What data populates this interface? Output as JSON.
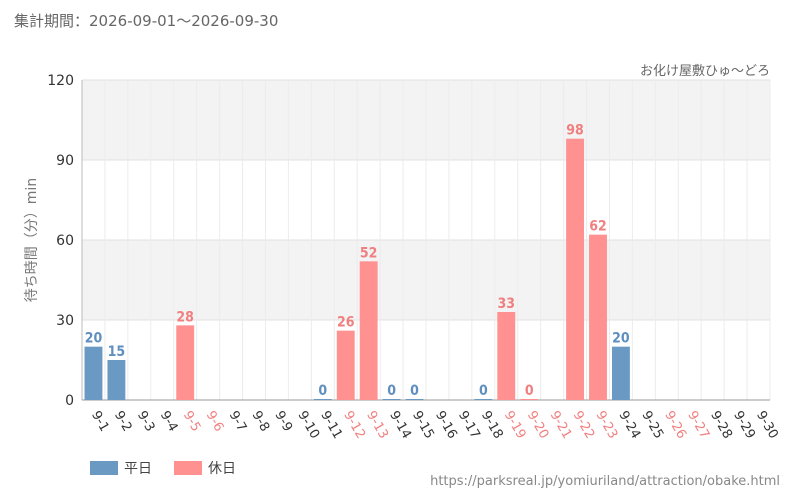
{
  "header": {
    "period_label": "集計期間：",
    "period_range": "2026-09-01～2026-09-30",
    "attraction": "お化け屋敷ひゅ〜どろ"
  },
  "footer": {
    "source_url": "https://parksreal.jp/yomiuriland/attraction/obake.html"
  },
  "colors": {
    "weekday": "#6a9ac4",
    "holiday": "#ff9191",
    "holiday_text": "#f08080",
    "weekday_text": "#5f8fbf",
    "grid_band": "#f3f3f3"
  },
  "legend": {
    "weekday_label": "平日",
    "holiday_label": "休日"
  },
  "chart_data": {
    "type": "bar",
    "ylabel": "待ち時間（分）min",
    "ylim": [
      0,
      120
    ],
    "yticks": [
      0,
      30,
      60,
      90,
      120
    ],
    "categories": [
      "9-1",
      "9-2",
      "9-3",
      "9-4",
      "9-5",
      "9-6",
      "9-7",
      "9-8",
      "9-9",
      "9-10",
      "9-11",
      "9-12",
      "9-13",
      "9-14",
      "9-15",
      "9-16",
      "9-17",
      "9-18",
      "9-19",
      "9-20",
      "9-21",
      "9-22",
      "9-23",
      "9-24",
      "9-25",
      "9-26",
      "9-27",
      "9-28",
      "9-29",
      "9-30"
    ],
    "day_type": [
      "weekday",
      "weekday",
      "weekday",
      "weekday",
      "holiday",
      "holiday",
      "weekday",
      "weekday",
      "weekday",
      "weekday",
      "weekday",
      "holiday",
      "holiday",
      "weekday",
      "weekday",
      "weekday",
      "weekday",
      "weekday",
      "holiday",
      "holiday",
      "holiday",
      "holiday",
      "holiday",
      "weekday",
      "weekday",
      "holiday",
      "holiday",
      "weekday",
      "weekday",
      "weekday"
    ],
    "values": [
      20,
      15,
      null,
      null,
      28,
      null,
      null,
      null,
      null,
      null,
      0,
      26,
      52,
      0,
      0,
      null,
      null,
      0,
      33,
      0,
      null,
      98,
      62,
      20,
      null,
      null,
      null,
      null,
      null,
      null
    ],
    "legend": [
      "平日",
      "休日"
    ]
  }
}
